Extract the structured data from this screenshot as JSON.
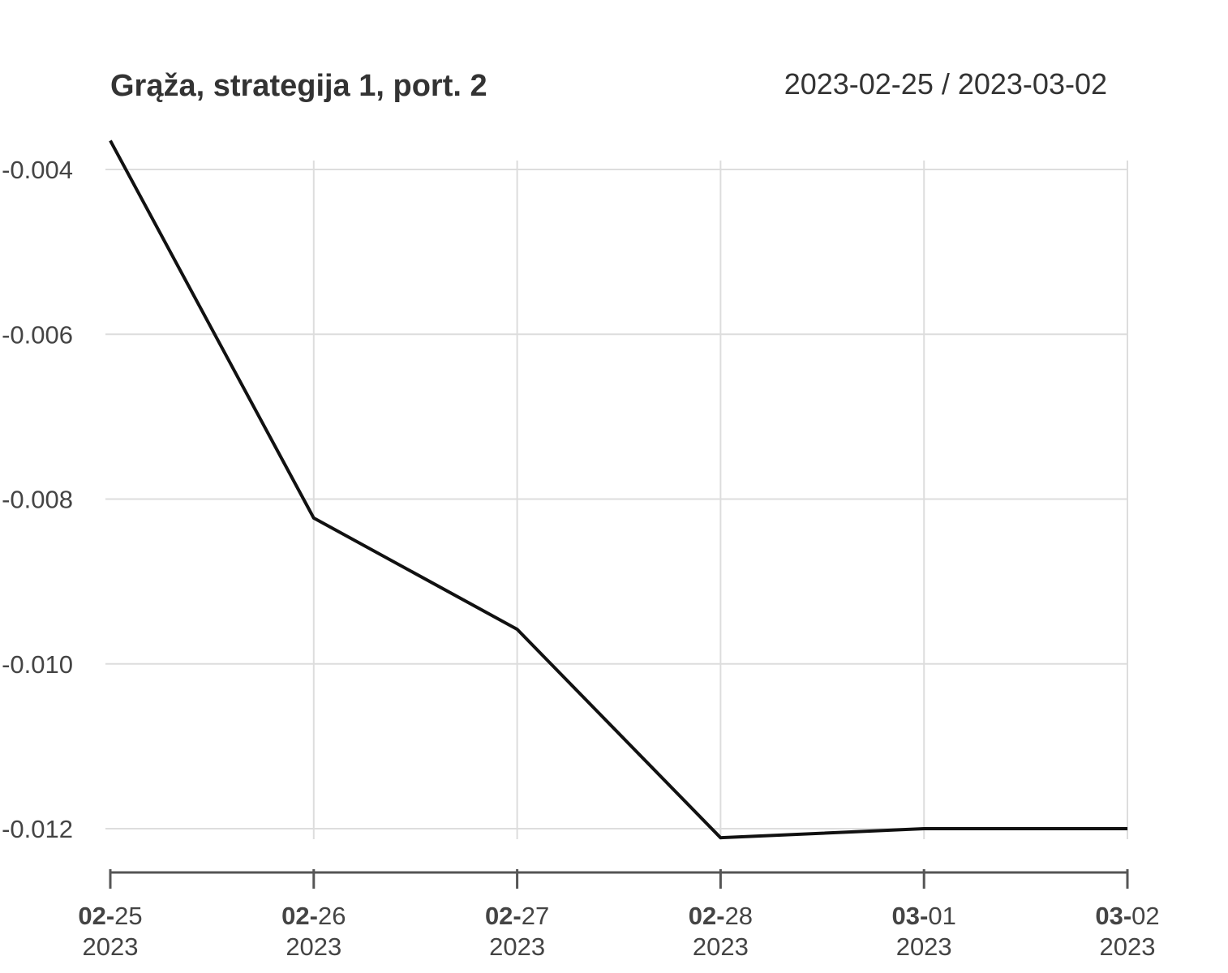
{
  "chart_data": {
    "type": "line",
    "title": "Grąža, strategija 1, port. 2",
    "date_range": "2023-02-25 / 2023-03-02",
    "x": [
      "2023-02-25",
      "2023-02-26",
      "2023-02-27",
      "2023-02-28",
      "2023-03-01",
      "2023-03-02"
    ],
    "x_tick_labels": [
      {
        "prefix": "02-",
        "suffix": "25",
        "year": "2023"
      },
      {
        "prefix": "02-",
        "suffix": "26",
        "year": "2023"
      },
      {
        "prefix": "02-",
        "suffix": "27",
        "year": "2023"
      },
      {
        "prefix": "02-",
        "suffix": "28",
        "year": "2023"
      },
      {
        "prefix": "03-",
        "suffix": "01",
        "year": "2023"
      },
      {
        "prefix": "03-",
        "suffix": "02",
        "year": "2023"
      }
    ],
    "series": [
      {
        "values": [
          -0.00365,
          -0.00823,
          -0.00958,
          -0.01211,
          -0.012,
          -0.012
        ]
      }
    ],
    "y_ticks": [
      -0.004,
      -0.006,
      -0.008,
      -0.01,
      -0.012
    ],
    "y_tick_labels": [
      "-0.004",
      "-0.006",
      "-0.008",
      "-0.010",
      "-0.012"
    ],
    "ylim": [
      -0.0122,
      -0.00365
    ],
    "xlabel": "",
    "ylabel": "",
    "grid": true,
    "legend": false,
    "colors": {
      "line": "#111111",
      "grid": "#dddddd",
      "axis": "#555555",
      "text": "#333333"
    }
  }
}
